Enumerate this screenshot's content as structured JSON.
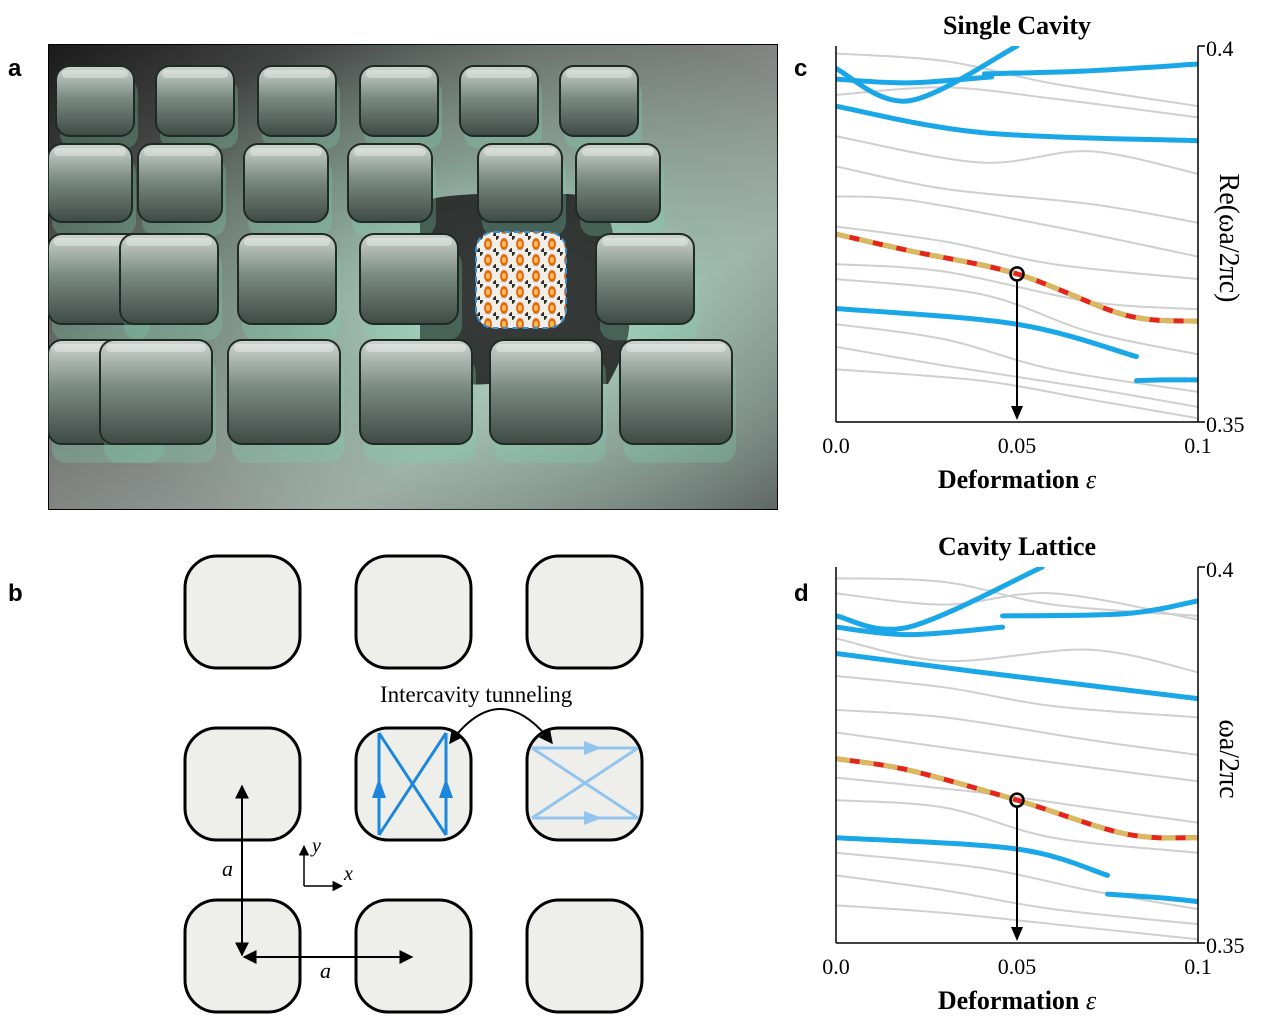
{
  "panels": {
    "a": {
      "letter": "a"
    },
    "b": {
      "letter": "b",
      "tunneling_label": "Intercavity tunneling",
      "lattice_const_label": "a",
      "axis_x_label": "x",
      "axis_y_label": "y"
    },
    "c": {
      "letter": "c"
    },
    "d": {
      "letter": "d"
    }
  },
  "colors": {
    "gray_mode": "#cfcfcf",
    "blue_mode": "#1aa7e8",
    "red_mode": "#e3261d",
    "gold_dash": "#d9b960",
    "cavity_fill": "#eeeeea",
    "ray_dark": "#1d87dc",
    "ray_light": "#92c4ee"
  },
  "chart_data": [
    {
      "type": "line",
      "title": "Single Cavity",
      "xlabel": "Deformation",
      "xlabel_symbol": "ε",
      "ylabel": "Re(ωa/2πc)",
      "xlim": [
        0.0,
        0.1
      ],
      "ylim": [
        0.35,
        0.4
      ],
      "xticks": [
        "0.0",
        "0.05",
        "0.1"
      ],
      "yticks": [
        "0.4",
        "0.35"
      ],
      "marker": {
        "x": 0.05,
        "y": 0.3697
      },
      "series": [
        {
          "style": "blue",
          "x": [
            0.0,
            0.02,
            0.05
          ],
          "y": [
            0.397,
            0.3927,
            0.4
          ]
        },
        {
          "style": "blue",
          "x": [
            0.0,
            0.02,
            0.043
          ],
          "y": [
            0.3956,
            0.3951,
            0.3959
          ]
        },
        {
          "style": "blue",
          "x": [
            0.041,
            0.07,
            0.1
          ],
          "y": [
            0.3963,
            0.3967,
            0.3976
          ]
        },
        {
          "style": "blue",
          "x": [
            0.0,
            0.04,
            0.1
          ],
          "y": [
            0.392,
            0.3885,
            0.3874
          ]
        },
        {
          "style": "blue",
          "x": [
            0.0,
            0.05,
            0.083
          ],
          "y": [
            0.3651,
            0.363,
            0.3587
          ]
        },
        {
          "style": "blue",
          "x": [
            0.083,
            0.09,
            0.1
          ],
          "y": [
            0.3555,
            0.3556,
            0.3556
          ]
        },
        {
          "style": "highlight",
          "x": [
            0.0,
            0.02,
            0.05,
            0.08,
            0.1
          ],
          "y": [
            0.375,
            0.3728,
            0.3697,
            0.3642,
            0.3634
          ]
        },
        {
          "style": "gray",
          "x": [
            0.0,
            0.03,
            0.06,
            0.1
          ],
          "y": [
            0.399,
            0.398,
            0.395,
            0.392
          ]
        },
        {
          "style": "gray",
          "x": [
            0.0,
            0.03,
            0.06,
            0.1
          ],
          "y": [
            0.3935,
            0.3945,
            0.393,
            0.3905
          ]
        },
        {
          "style": "gray",
          "x": [
            0.0,
            0.04,
            0.07,
            0.1
          ],
          "y": [
            0.388,
            0.3845,
            0.386,
            0.383
          ]
        },
        {
          "style": "gray",
          "x": [
            0.0,
            0.03,
            0.07,
            0.1
          ],
          "y": [
            0.384,
            0.381,
            0.379,
            0.3765
          ]
        },
        {
          "style": "gray",
          "x": [
            0.0,
            0.02,
            0.06,
            0.1
          ],
          "y": [
            0.38,
            0.3795,
            0.376,
            0.372
          ]
        },
        {
          "style": "gray",
          "x": [
            0.0,
            0.03,
            0.06,
            0.1
          ],
          "y": [
            0.376,
            0.374,
            0.371,
            0.369
          ]
        },
        {
          "style": "gray",
          "x": [
            0.0,
            0.03,
            0.07,
            0.1
          ],
          "y": [
            0.371,
            0.37,
            0.366,
            0.365
          ]
        },
        {
          "style": "gray",
          "x": [
            0.0,
            0.04,
            0.07,
            0.1
          ],
          "y": [
            0.369,
            0.367,
            0.362,
            0.359
          ]
        },
        {
          "style": "gray",
          "x": [
            0.0,
            0.03,
            0.06,
            0.1
          ],
          "y": [
            0.363,
            0.361,
            0.357,
            0.354
          ]
        },
        {
          "style": "gray",
          "x": [
            0.0,
            0.03,
            0.07,
            0.1
          ],
          "y": [
            0.36,
            0.3575,
            0.3545,
            0.352
          ]
        },
        {
          "style": "gray",
          "x": [
            0.0,
            0.04,
            0.07,
            0.1
          ],
          "y": [
            0.357,
            0.3555,
            0.353,
            0.3505
          ]
        }
      ]
    },
    {
      "type": "line",
      "title": "Cavity Lattice",
      "xlabel": "Deformation",
      "xlabel_symbol": "ε",
      "ylabel": "ωa/2πc",
      "xlim": [
        0.0,
        0.1
      ],
      "ylim": [
        0.35,
        0.4
      ],
      "xticks": [
        "0.0",
        "0.05",
        "0.1"
      ],
      "yticks": [
        "0.4",
        "0.35"
      ],
      "marker": {
        "x": 0.05,
        "y": 0.369
      },
      "series": [
        {
          "style": "blue",
          "x": [
            0.0,
            0.02,
            0.057
          ],
          "y": [
            0.3935,
            0.392,
            0.4
          ]
        },
        {
          "style": "blue",
          "x": [
            0.0,
            0.02,
            0.046
          ],
          "y": [
            0.392,
            0.391,
            0.392
          ]
        },
        {
          "style": "blue",
          "x": [
            0.046,
            0.08,
            0.1
          ],
          "y": [
            0.3935,
            0.3938,
            0.3955
          ]
        },
        {
          "style": "blue",
          "x": [
            0.0,
            0.04,
            0.1
          ],
          "y": [
            0.3885,
            0.386,
            0.3825
          ]
        },
        {
          "style": "blue",
          "x": [
            0.0,
            0.05,
            0.075
          ],
          "y": [
            0.364,
            0.3625,
            0.359
          ]
        },
        {
          "style": "blue",
          "x": [
            0.075,
            0.09,
            0.1
          ],
          "y": [
            0.3565,
            0.356,
            0.3555
          ]
        },
        {
          "style": "highlight",
          "x": [
            0.0,
            0.02,
            0.05,
            0.08,
            0.1
          ],
          "y": [
            0.3745,
            0.373,
            0.369,
            0.3645,
            0.364
          ]
        },
        {
          "style": "gray",
          "x": [
            0.0,
            0.03,
            0.06,
            0.1
          ],
          "y": [
            0.3985,
            0.398,
            0.395,
            0.3935
          ]
        },
        {
          "style": "gray",
          "x": [
            0.0,
            0.03,
            0.06,
            0.1
          ],
          "y": [
            0.3965,
            0.395,
            0.3965,
            0.393
          ]
        },
        {
          "style": "gray",
          "x": [
            0.0,
            0.03,
            0.07,
            0.1
          ],
          "y": [
            0.3905,
            0.3875,
            0.389,
            0.386
          ]
        },
        {
          "style": "gray",
          "x": [
            0.0,
            0.03,
            0.06,
            0.1
          ],
          "y": [
            0.3855,
            0.384,
            0.3815,
            0.38
          ]
        },
        {
          "style": "gray",
          "x": [
            0.0,
            0.03,
            0.07,
            0.1
          ],
          "y": [
            0.381,
            0.38,
            0.377,
            0.375
          ]
        },
        {
          "style": "gray",
          "x": [
            0.0,
            0.03,
            0.06,
            0.1
          ],
          "y": [
            0.378,
            0.376,
            0.374,
            0.3715
          ]
        },
        {
          "style": "gray",
          "x": [
            0.0,
            0.04,
            0.07,
            0.1
          ],
          "y": [
            0.372,
            0.37,
            0.368,
            0.366
          ]
        },
        {
          "style": "gray",
          "x": [
            0.0,
            0.03,
            0.06,
            0.1
          ],
          "y": [
            0.369,
            0.368,
            0.364,
            0.362
          ]
        },
        {
          "style": "gray",
          "x": [
            0.0,
            0.04,
            0.07,
            0.1
          ],
          "y": [
            0.362,
            0.36,
            0.357,
            0.3545
          ]
        },
        {
          "style": "gray",
          "x": [
            0.0,
            0.03,
            0.06,
            0.1
          ],
          "y": [
            0.359,
            0.357,
            0.3545,
            0.3525
          ]
        },
        {
          "style": "gray",
          "x": [
            0.0,
            0.03,
            0.07,
            0.1
          ],
          "y": [
            0.355,
            0.354,
            0.352,
            0.3505
          ]
        }
      ]
    }
  ]
}
